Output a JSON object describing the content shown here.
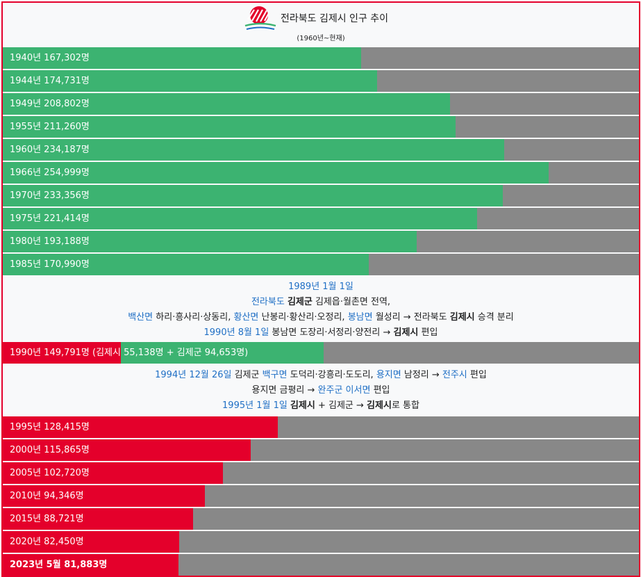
{
  "header": {
    "title": "전라북도 김제시 인구 추이",
    "subtitle": "(1960년~현재)"
  },
  "colors": {
    "green": "#3cb371",
    "red": "#e4002b",
    "remainder": "#888888",
    "link": "#1f6fc5"
  },
  "chart_data": {
    "type": "bar",
    "orientation": "horizontal",
    "xlim": [
      0,
      297000
    ],
    "groups": [
      {
        "color": "#3cb371",
        "rows": [
          {
            "year": 1940,
            "label": "1940년 167,302명",
            "value": 167302
          },
          {
            "year": 1944,
            "label": "1944년 174,731명",
            "value": 174731
          },
          {
            "year": 1949,
            "label": "1949년 208,802명",
            "value": 208802
          },
          {
            "year": 1955,
            "label": "1955년 211,260명",
            "value": 211260
          },
          {
            "year": 1960,
            "label": "1960년 234,187명",
            "value": 234187
          },
          {
            "year": 1966,
            "label": "1966년 254,999명",
            "value": 254999
          },
          {
            "year": 1970,
            "label": "1970년 233,356명",
            "value": 233356
          },
          {
            "year": 1975,
            "label": "1975년 221,414명",
            "value": 221414
          },
          {
            "year": 1980,
            "label": "1980년 193,188명",
            "value": 193188
          },
          {
            "year": 1985,
            "label": "1985년 170,990명",
            "value": 170990
          }
        ]
      },
      {
        "split": true,
        "rows": [
          {
            "year": 1990,
            "label": "1990년 149,791명 (김제시 55,138명 + 김제군 94,653명)",
            "value": 149791,
            "city": 55138,
            "county": 94653
          }
        ]
      },
      {
        "color": "#e4002b",
        "rows": [
          {
            "year": 1995,
            "label": "1995년 128,415명",
            "value": 128415
          },
          {
            "year": 2000,
            "label": "2000년 115,865명",
            "value": 115865
          },
          {
            "year": 2005,
            "label": "2005년 102,720명",
            "value": 102720
          },
          {
            "year": 2010,
            "label": "2010년 94,346명",
            "value": 94346
          },
          {
            "year": 2015,
            "label": "2015년 88,721명",
            "value": 88721
          },
          {
            "year": 2020,
            "label": "2020년 82,450명",
            "value": 82450
          },
          {
            "year": 2023,
            "label": "2023년 5월 81,883명",
            "value": 81883,
            "bold": true
          }
        ]
      }
    ]
  },
  "notes": {
    "note1": [
      [
        {
          "t": "1989년 1월 1일",
          "link": true
        }
      ],
      [
        {
          "t": "전라북도",
          "link": true
        },
        {
          "t": " "
        },
        {
          "t": "김제군",
          "bold": true
        },
        {
          "t": " 김제읍·월촌면 전역,"
        }
      ],
      [
        {
          "t": "백산면",
          "link": true
        },
        {
          "t": " 하리·흥사리·상동리, "
        },
        {
          "t": "황산면",
          "link": true
        },
        {
          "t": " 난봉리·황산리·오정리, "
        },
        {
          "t": "봉남면",
          "link": true
        },
        {
          "t": " 월성리 → 전라북도 "
        },
        {
          "t": "김제시",
          "bold": true
        },
        {
          "t": " 승격 분리"
        }
      ],
      [
        {
          "t": "1990년 8월 1일",
          "link": true
        },
        {
          "t": " 봉남면 도장리·서정리·양전리 → "
        },
        {
          "t": "김제시",
          "bold": true
        },
        {
          "t": " 편입"
        }
      ]
    ],
    "note2": [
      [
        {
          "t": "1994년 12월 26일",
          "link": true
        },
        {
          "t": " 김제군 "
        },
        {
          "t": "백구면",
          "link": true
        },
        {
          "t": " 도덕리·강흥리·도도리, "
        },
        {
          "t": "용지면",
          "link": true
        },
        {
          "t": " 남정리 → "
        },
        {
          "t": "전주시",
          "link": true
        },
        {
          "t": " 편입"
        }
      ],
      [
        {
          "t": "용지면 금평리 → "
        },
        {
          "t": "완주군 이서면",
          "link": true
        },
        {
          "t": " 편입"
        }
      ],
      [
        {
          "t": "1995년 1월 1일",
          "link": true
        },
        {
          "t": " "
        },
        {
          "t": "김제시",
          "bold": true
        },
        {
          "t": " + 김제군 → "
        },
        {
          "t": "김제시",
          "bold": true
        },
        {
          "t": "로 통합"
        }
      ]
    ]
  }
}
